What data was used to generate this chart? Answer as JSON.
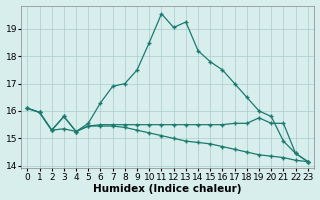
{
  "xlabel": "Humidex (Indice chaleur)",
  "x": [
    0,
    1,
    2,
    3,
    4,
    5,
    6,
    7,
    8,
    9,
    10,
    11,
    12,
    13,
    14,
    15,
    16,
    17,
    18,
    19,
    20,
    21,
    22,
    23
  ],
  "line_mountain": [
    16.1,
    15.95,
    15.3,
    15.8,
    15.25,
    15.55,
    16.3,
    16.9,
    17.0,
    17.5,
    18.5,
    19.55,
    19.05,
    19.25,
    18.2,
    17.8,
    17.5,
    17.0,
    16.5,
    16.0,
    15.8,
    14.9,
    14.45,
    14.15
  ],
  "line_flat": [
    16.1,
    15.95,
    15.3,
    15.35,
    15.25,
    15.45,
    15.5,
    15.5,
    15.5,
    15.5,
    15.5,
    15.5,
    15.5,
    15.5,
    15.5,
    15.5,
    15.5,
    15.55,
    15.55,
    15.75,
    15.55,
    15.55,
    14.45,
    14.15
  ],
  "line_diagonal": [
    16.1,
    15.95,
    15.3,
    15.8,
    15.25,
    15.45,
    15.45,
    15.45,
    15.4,
    15.3,
    15.2,
    15.1,
    15.0,
    14.9,
    14.85,
    14.8,
    14.7,
    14.6,
    14.5,
    14.4,
    14.35,
    14.3,
    14.2,
    14.15
  ],
  "ylim": [
    13.9,
    19.85
  ],
  "xlim": [
    -0.5,
    23.5
  ],
  "yticks": [
    14,
    15,
    16,
    17,
    18,
    19
  ],
  "xticks": [
    0,
    1,
    2,
    3,
    4,
    5,
    6,
    7,
    8,
    9,
    10,
    11,
    12,
    13,
    14,
    15,
    16,
    17,
    18,
    19,
    20,
    21,
    22,
    23
  ],
  "line_color": "#1a7a6e",
  "bg_color": "#d8eeec",
  "grid_color": "#aacccc",
  "label_fontsize": 7.5,
  "tick_fontsize": 6.5
}
